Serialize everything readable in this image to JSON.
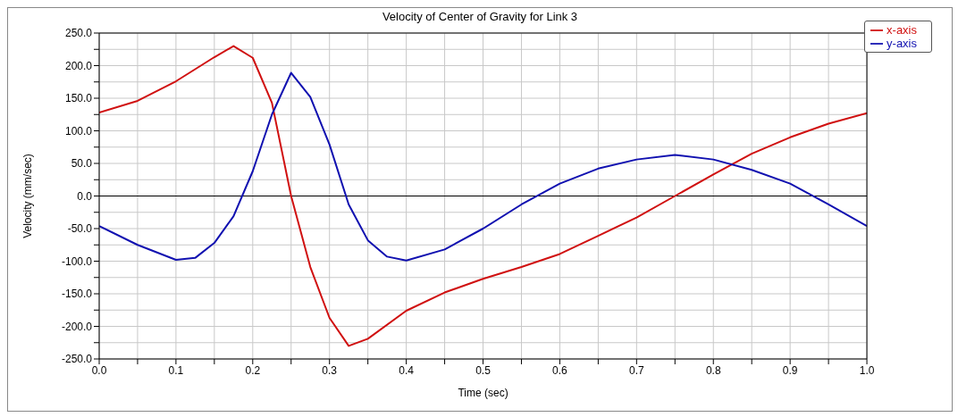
{
  "chart_data": {
    "type": "line",
    "title": "Velocity of Center of Gravity for Link 3",
    "xlabel": "Time (sec)",
    "ylabel": "Velocity (mm/sec)",
    "series": [
      {
        "name": "x-axis",
        "color": "#d01010",
        "x": [
          0,
          0.05,
          0.1,
          0.15,
          0.175,
          0.2,
          0.225,
          0.25,
          0.275,
          0.3,
          0.325,
          0.35,
          0.4,
          0.45,
          0.5,
          0.55,
          0.6,
          0.65,
          0.7,
          0.75,
          0.8,
          0.85,
          0.9,
          0.95,
          1.0
        ],
        "values": [
          128,
          146,
          176,
          213,
          230,
          212,
          143,
          0,
          -109,
          -187,
          -230,
          -219,
          -176,
          -148,
          -127,
          -109,
          -89,
          -61,
          -33,
          0,
          33,
          65,
          90,
          111,
          127
        ]
      },
      {
        "name": "y-axis",
        "color": "#1010b0",
        "x": [
          0,
          0.05,
          0.1,
          0.125,
          0.15,
          0.175,
          0.2,
          0.225,
          0.25,
          0.275,
          0.3,
          0.325,
          0.35,
          0.375,
          0.4,
          0.45,
          0.5,
          0.55,
          0.6,
          0.65,
          0.7,
          0.75,
          0.8,
          0.85,
          0.9,
          0.95,
          1.0
        ],
        "values": [
          -46,
          -75,
          -98,
          -95,
          -72,
          -31,
          38,
          125,
          189,
          152,
          79,
          -13,
          -68,
          -93,
          -99,
          -82,
          -50,
          -13,
          19,
          42,
          56,
          63,
          56,
          40,
          19,
          -13,
          -46
        ]
      }
    ],
    "xlim": [
      0,
      1
    ],
    "xticks": [
      {
        "value": 0,
        "label": "0.0"
      },
      {
        "value": 0.05,
        "label": null
      },
      {
        "value": 0.1,
        "label": "0.1"
      },
      {
        "value": 0.15,
        "label": null
      },
      {
        "value": 0.2,
        "label": "0.2"
      },
      {
        "value": 0.25,
        "label": null
      },
      {
        "value": 0.3,
        "label": "0.3"
      },
      {
        "value": 0.35,
        "label": null
      },
      {
        "value": 0.4,
        "label": "0.4"
      },
      {
        "value": 0.45,
        "label": null
      },
      {
        "value": 0.5,
        "label": "0.5"
      },
      {
        "value": 0.55,
        "label": null
      },
      {
        "value": 0.6,
        "label": "0.6"
      },
      {
        "value": 0.65,
        "label": null
      },
      {
        "value": 0.7,
        "label": "0.7"
      },
      {
        "value": 0.75,
        "label": null
      },
      {
        "value": 0.8,
        "label": "0.8"
      },
      {
        "value": 0.85,
        "label": null
      },
      {
        "value": 0.9,
        "label": "0.9"
      },
      {
        "value": 0.95,
        "label": null
      },
      {
        "value": 1,
        "label": "1.0"
      }
    ],
    "ylim": [
      -250,
      250
    ],
    "yticks": [
      {
        "value": -250,
        "label": "-250.0"
      },
      {
        "value": -225,
        "label": null
      },
      {
        "value": -200,
        "label": "-200.0"
      },
      {
        "value": -175,
        "label": null
      },
      {
        "value": -150,
        "label": "-150.0"
      },
      {
        "value": -125,
        "label": null
      },
      {
        "value": -100,
        "label": "-100.0"
      },
      {
        "value": -75,
        "label": null
      },
      {
        "value": -50,
        "label": "-50.0"
      },
      {
        "value": -25,
        "label": null
      },
      {
        "value": 0,
        "label": "0.0"
      },
      {
        "value": 25,
        "label": null
      },
      {
        "value": 50,
        "label": "50.0"
      },
      {
        "value": 75,
        "label": null
      },
      {
        "value": 100,
        "label": "100.0"
      },
      {
        "value": 125,
        "label": null
      },
      {
        "value": 150,
        "label": "150.0"
      },
      {
        "value": 175,
        "label": null
      },
      {
        "value": 200,
        "label": "200.0"
      },
      {
        "value": 225,
        "label": null
      },
      {
        "value": 250,
        "label": "250.0"
      }
    ],
    "ref_lines": [
      {
        "axis": "y",
        "value": 0,
        "color": "#000000"
      }
    ],
    "grid": true,
    "legend": "top right",
    "marker": "none",
    "line_style": "solid"
  }
}
